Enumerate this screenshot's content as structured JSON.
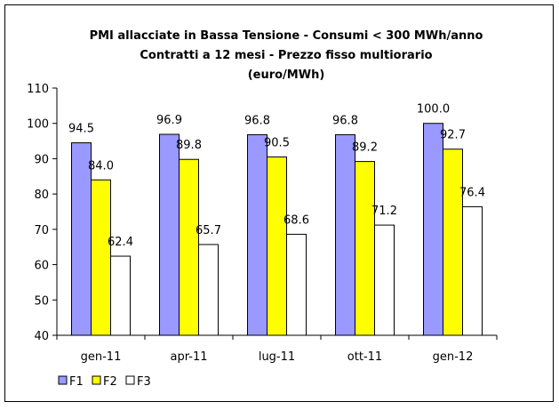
{
  "chart_data": {
    "type": "bar",
    "title_lines": [
      "PMI allacciate in Bassa Tensione - Consumi < 300 MWh/anno",
      "Contratti a 12 mesi - Prezzo fisso multiorario",
      "(euro/MWh)"
    ],
    "categories": [
      "gen-11",
      "apr-11",
      "lug-11",
      "ott-11",
      "gen-12"
    ],
    "series": [
      {
        "name": "F1",
        "values": [
          94.5,
          96.9,
          96.8,
          96.8,
          100.0
        ],
        "color": "#9999FF"
      },
      {
        "name": "F2",
        "values": [
          84.0,
          89.8,
          90.5,
          89.2,
          92.7
        ],
        "color": "#FFFF00"
      },
      {
        "name": "F3",
        "values": [
          62.4,
          65.7,
          68.6,
          71.2,
          76.4
        ],
        "color": "#FFFFFF"
      }
    ],
    "yticks": [
      40,
      50,
      60,
      70,
      80,
      90,
      100,
      110
    ],
    "ylim": [
      40,
      110
    ],
    "xlabel": "",
    "ylabel": "",
    "grid": false,
    "legend": "bottom-left"
  }
}
